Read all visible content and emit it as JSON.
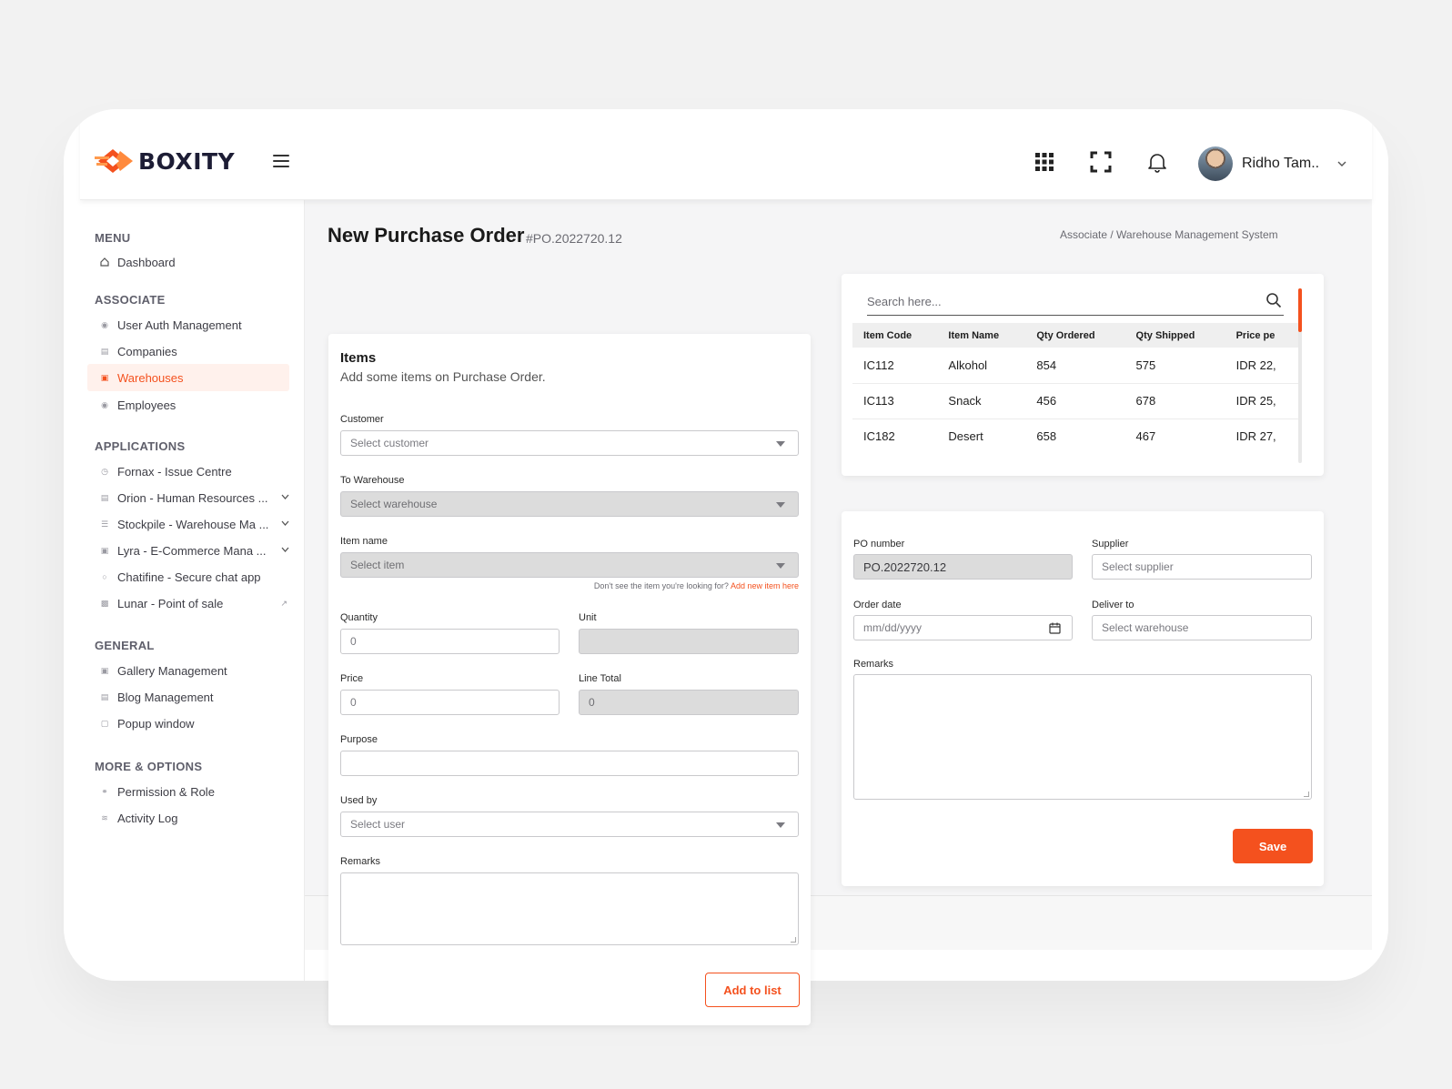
{
  "brand": {
    "name": "BOXITY",
    "accent": "#f4511e"
  },
  "user": {
    "name": "Ridho Tam.."
  },
  "header": {
    "title": "New Purchase Order",
    "po_ref": "#PO.2022720.12",
    "breadcrumb": "Associate / Warehouse Management System"
  },
  "sidebar": {
    "sections": [
      {
        "title": "MENU",
        "items": [
          {
            "label": "Dashboard",
            "icon": "home-icon"
          }
        ]
      },
      {
        "title": "ASSOCIATE",
        "items": [
          {
            "label": "User Auth Management",
            "icon": "users-icon"
          },
          {
            "label": "Companies",
            "icon": "chart-icon"
          },
          {
            "label": "Warehouses",
            "icon": "warehouse-icon",
            "active": true
          },
          {
            "label": "Employees",
            "icon": "employees-icon"
          }
        ]
      },
      {
        "title": "APPLICATIONS",
        "items": [
          {
            "label": "Fornax - Issue Centre",
            "icon": "clock-icon"
          },
          {
            "label": "Orion - Human Resources ...",
            "icon": "calendar-icon",
            "expandable": true
          },
          {
            "label": "Stockpile - Warehouse Ma ...",
            "icon": "stack-icon",
            "expandable": true
          },
          {
            "label": "Lyra - E-Commerce Mana ...",
            "icon": "store-icon",
            "expandable": true
          },
          {
            "label": "Chatifine - Secure chat app",
            "icon": "chat-icon"
          },
          {
            "label": "Lunar - Point of sale",
            "icon": "pos-icon",
            "external": true
          }
        ]
      },
      {
        "title": "GENERAL",
        "items": [
          {
            "label": "Gallery Management",
            "icon": "gallery-icon"
          },
          {
            "label": "Blog Management",
            "icon": "blog-icon"
          },
          {
            "label": "Popup window",
            "icon": "popup-icon"
          }
        ]
      },
      {
        "title": "MORE & OPTIONS",
        "items": [
          {
            "label": "Permission & Role",
            "icon": "key-icon"
          },
          {
            "label": "Activity Log",
            "icon": "activity-icon"
          }
        ]
      }
    ]
  },
  "items_form": {
    "title": "Items",
    "subtitle": "Add some items on Purchase Order.",
    "customer": {
      "label": "Customer",
      "placeholder": "Select customer"
    },
    "to_warehouse": {
      "label": "To Warehouse",
      "placeholder": "Select warehouse"
    },
    "item_name": {
      "label": "Item name",
      "placeholder": "Select item"
    },
    "hint": "Don't see the item you're looking for?",
    "hint_link": "Add new item here",
    "quantity": {
      "label": "Quantity",
      "value": "0"
    },
    "unit": {
      "label": "Unit",
      "value": ""
    },
    "price": {
      "label": "Price",
      "value": "0"
    },
    "line_total": {
      "label": "Line Total",
      "value": "0"
    },
    "purpose": {
      "label": "Purpose",
      "value": ""
    },
    "used_by": {
      "label": "Used by",
      "placeholder": "Select user"
    },
    "remarks": {
      "label": "Remarks"
    },
    "add_button": "Add to list"
  },
  "items_table": {
    "search_placeholder": "Search here...",
    "columns": [
      "Item Code",
      "Item Name",
      "Qty Ordered",
      "Qty Shipped",
      "Price pe"
    ],
    "rows": [
      [
        "IC112",
        "Alkohol",
        "854",
        "575",
        "IDR 22,"
      ],
      [
        "IC113",
        "Snack",
        "456",
        "678",
        "IDR 25,"
      ],
      [
        "IC182",
        "Desert",
        "658",
        "467",
        "IDR 27,"
      ]
    ]
  },
  "po_form": {
    "po_number": {
      "label": "PO number",
      "value": "PO.2022720.12"
    },
    "supplier": {
      "label": "Supplier",
      "placeholder": "Select supplier"
    },
    "order_date": {
      "label": "Order date",
      "placeholder": "mm/dd/yyyy"
    },
    "deliver_to": {
      "label": "Deliver to",
      "placeholder": "Select warehouse"
    },
    "remarks": {
      "label": "Remarks"
    },
    "save_button": "Save"
  }
}
